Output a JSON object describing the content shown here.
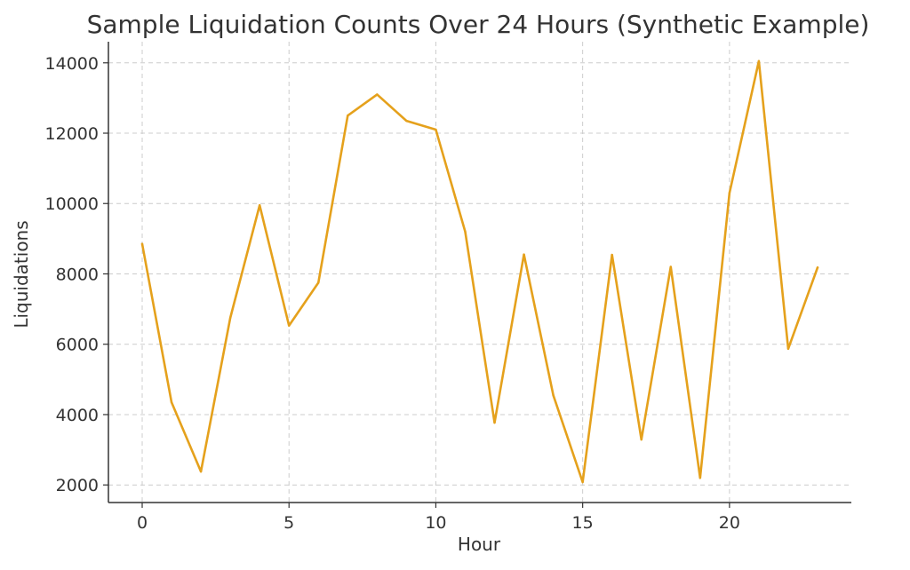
{
  "chart_data": {
    "type": "line",
    "title": "Sample Liquidation Counts Over 24 Hours (Synthetic Example)",
    "xlabel": "Hour",
    "ylabel": "Liquidations",
    "xlim": [
      -1.15,
      24.15
    ],
    "ylim": [
      1500,
      14600
    ],
    "x_ticks": [
      0,
      5,
      10,
      15,
      20
    ],
    "y_ticks": [
      2000,
      4000,
      6000,
      8000,
      10000,
      12000,
      14000
    ],
    "grid": true,
    "legend": "none",
    "series": [
      {
        "color": "#E5A11C",
        "x": [
          0,
          1,
          2,
          3,
          4,
          5,
          6,
          7,
          8,
          9,
          10,
          11,
          12,
          13,
          14,
          15,
          16,
          17,
          18,
          19,
          20,
          21,
          22,
          23
        ],
        "values": [
          8850,
          4350,
          2380,
          6750,
          9950,
          6530,
          7750,
          12500,
          13100,
          12350,
          12100,
          9200,
          3770,
          8550,
          4550,
          2080,
          8540,
          3290,
          8200,
          2200,
          10300,
          14050,
          5870,
          8180
        ]
      }
    ]
  }
}
